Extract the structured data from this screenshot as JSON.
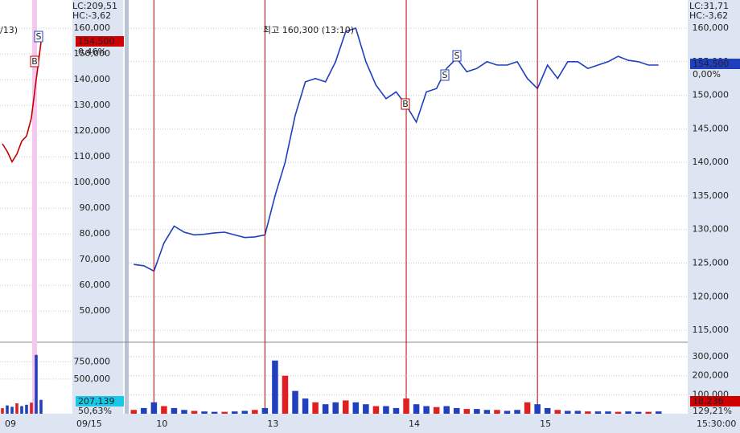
{
  "chart_data": [
    {
      "type": "line",
      "color": "#c00000",
      "header": [
        "LC:209,51",
        "HC:-3,62"
      ],
      "price_tag": "154,500",
      "change_tag": "0,46%",
      "marker_labels": [
        "S",
        "B"
      ],
      "partial_note": "/13)",
      "categories": [
        "09",
        null,
        null,
        null,
        null,
        null,
        null,
        null,
        null
      ],
      "values": [
        115000,
        112000,
        108000,
        111000,
        116000,
        118000,
        125000,
        140000,
        154500
      ],
      "ylim": [
        38125,
        170940
      ],
      "yticks": [
        {
          "value": 50000,
          "label": "50,000"
        },
        {
          "value": 60000,
          "label": "60,000"
        },
        {
          "value": 70000,
          "label": "70,000"
        },
        {
          "value": 80000,
          "label": "80,000"
        },
        {
          "value": 90000,
          "label": "90,000"
        },
        {
          "value": 100000,
          "label": "100,000"
        },
        {
          "value": 110000,
          "label": "110,000"
        },
        {
          "value": 120000,
          "label": "120,000"
        },
        {
          "value": 130000,
          "label": "130,000"
        },
        {
          "value": 140000,
          "label": "140,000"
        },
        {
          "value": 150000,
          "label": "150,000"
        },
        {
          "value": 160000,
          "label": "160,000"
        }
      ],
      "grid": true
    },
    {
      "type": "bar",
      "color": "#2040c0",
      "date_label": "09/15",
      "volume_tag": "207,139",
      "ratio_tag": "50,63%",
      "values": [
        80000,
        120000,
        100000,
        150000,
        110000,
        130000,
        160000,
        850000,
        200000
      ],
      "ylim": [
        0,
        1010000
      ],
      "yticks": [
        {
          "value": 500000,
          "label": "500,000"
        },
        {
          "value": 750000,
          "label": "750,000"
        }
      ],
      "grid": true
    },
    {
      "type": "line",
      "color": "#1f3fbf",
      "header": [
        "LC:31,71",
        "HC:-3,62"
      ],
      "price_tag": "154,500",
      "change_tag": "0,00%",
      "high_note": "최고 160,300 (13:10)",
      "marker_labels": [
        "S",
        "S",
        "B"
      ],
      "time_label": "15:30:00",
      "categories": [
        null,
        null,
        "10",
        null,
        null,
        null,
        null,
        null,
        null,
        null,
        null,
        null,
        null,
        "13",
        null,
        null,
        null,
        null,
        null,
        null,
        null,
        null,
        null,
        null,
        null,
        null,
        null,
        "14",
        null,
        null,
        null,
        null,
        null,
        null,
        null,
        null,
        null,
        null,
        null,
        null,
        "15",
        null,
        null,
        null,
        null,
        null,
        null,
        null,
        null,
        null,
        null,
        null,
        null
      ],
      "values": [
        124800,
        124600,
        123800,
        128000,
        130500,
        129600,
        129200,
        129300,
        129500,
        129600,
        129200,
        128800,
        128900,
        129200,
        135000,
        140000,
        147000,
        152000,
        152500,
        152000,
        155000,
        159500,
        160000,
        155000,
        151500,
        149500,
        150500,
        148500,
        146000,
        150500,
        151000,
        154000,
        155500,
        153500,
        154000,
        155000,
        154500,
        154500,
        155000,
        152500,
        151000,
        154500,
        152500,
        155000,
        155000,
        154000,
        154500,
        155000,
        155800,
        155200,
        155000,
        154500,
        154500
      ],
      "ylim": [
        113330,
        164190
      ],
      "yticks": [
        {
          "value": 115000,
          "label": "115,000"
        },
        {
          "value": 120000,
          "label": "120,000"
        },
        {
          "value": 125000,
          "label": "125,000"
        },
        {
          "value": 130000,
          "label": "130,000"
        },
        {
          "value": 135000,
          "label": "135,000"
        },
        {
          "value": 140000,
          "label": "140,000"
        },
        {
          "value": 145000,
          "label": "145,000"
        },
        {
          "value": 150000,
          "label": "150,000"
        },
        {
          "value": 155000,
          "label": "155,000"
        },
        {
          "value": 160000,
          "label": "160,000"
        }
      ],
      "grid": true
    },
    {
      "type": "bar",
      "color": "#2040c0",
      "volume_tag": "18,236",
      "ratio_tag": "129,21%",
      "values": [
        20000,
        30000,
        60000,
        40000,
        30000,
        20000,
        15000,
        12000,
        10000,
        10000,
        12000,
        15000,
        20000,
        30000,
        280000,
        200000,
        120000,
        80000,
        60000,
        50000,
        60000,
        70000,
        60000,
        50000,
        40000,
        40000,
        30000,
        80000,
        50000,
        40000,
        35000,
        40000,
        30000,
        25000,
        25000,
        20000,
        20000,
        15000,
        20000,
        60000,
        50000,
        30000,
        20000,
        15000,
        15000,
        12000,
        12000,
        12000,
        10000,
        12000,
        10000,
        10000,
        12000
      ],
      "ylim": [
        0,
        368000
      ],
      "yticks": [
        {
          "value": 100000,
          "label": "100,000"
        },
        {
          "value": 200000,
          "label": "200,000"
        },
        {
          "value": 300000,
          "label": "300,000"
        }
      ],
      "grid": true
    }
  ]
}
